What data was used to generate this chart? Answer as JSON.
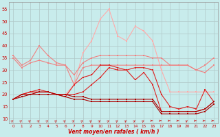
{
  "x": [
    0,
    1,
    2,
    3,
    4,
    5,
    6,
    7,
    8,
    9,
    10,
    11,
    12,
    13,
    14,
    15,
    16,
    17,
    18,
    19,
    20,
    21,
    22,
    23
  ],
  "rafales": [
    18,
    20,
    21,
    21,
    21,
    20,
    20,
    24,
    37,
    42,
    51,
    55,
    44,
    42,
    48,
    46,
    42,
    30,
    21,
    21,
    21,
    21,
    21,
    21
  ],
  "band_hi": [
    36,
    32,
    34,
    40,
    36,
    33,
    32,
    28,
    33,
    35,
    36,
    36,
    36,
    36,
    36,
    36,
    35,
    35,
    32,
    32,
    32,
    30,
    32,
    35
  ],
  "band_lo": [
    35,
    31,
    33,
    34,
    33,
    32,
    32,
    24,
    31,
    32,
    32,
    32,
    32,
    32,
    32,
    32,
    32,
    32,
    32,
    32,
    32,
    30,
    29,
    32
  ],
  "mid_hi": [
    18,
    20,
    21,
    22,
    21,
    20,
    19,
    24,
    27,
    28,
    32,
    32,
    31,
    30,
    31,
    31,
    30,
    20,
    15,
    14,
    15,
    14,
    22,
    17
  ],
  "mid_lo": [
    18,
    20,
    21,
    21,
    21,
    20,
    20,
    20,
    21,
    24,
    27,
    31,
    30,
    30,
    26,
    29,
    24,
    13,
    13,
    13,
    13,
    13,
    14,
    17
  ],
  "low_hi": [
    18,
    20,
    20,
    21,
    21,
    20,
    20,
    19,
    19,
    18,
    18,
    18,
    18,
    18,
    18,
    18,
    18,
    13,
    13,
    13,
    13,
    13,
    14,
    17
  ],
  "low_lo": [
    18,
    19,
    20,
    20,
    20,
    20,
    19,
    18,
    18,
    17,
    17,
    17,
    17,
    17,
    17,
    17,
    17,
    12,
    12,
    12,
    12,
    12,
    13,
    16
  ],
  "bg_color": "#c8ecec",
  "color_rafales": "#ffaaaa",
  "color_band": "#f08080",
  "color_mid": "#dd2222",
  "color_low": "#aa0000",
  "xlabel": "Vent moyen/en rafales ( km/h )",
  "ylim": [
    8,
    58
  ],
  "yticks": [
    10,
    15,
    20,
    25,
    30,
    35,
    40,
    45,
    50,
    55
  ],
  "xticks": [
    0,
    1,
    2,
    3,
    4,
    5,
    6,
    7,
    8,
    9,
    10,
    11,
    12,
    13,
    14,
    15,
    16,
    17,
    18,
    19,
    20,
    21,
    22,
    23
  ],
  "arrow_dirs": [
    1,
    1,
    1,
    1,
    1,
    1,
    1,
    1,
    1,
    1,
    1,
    1,
    1,
    1,
    1,
    1,
    0,
    0,
    0,
    0,
    1,
    0,
    0,
    0
  ]
}
